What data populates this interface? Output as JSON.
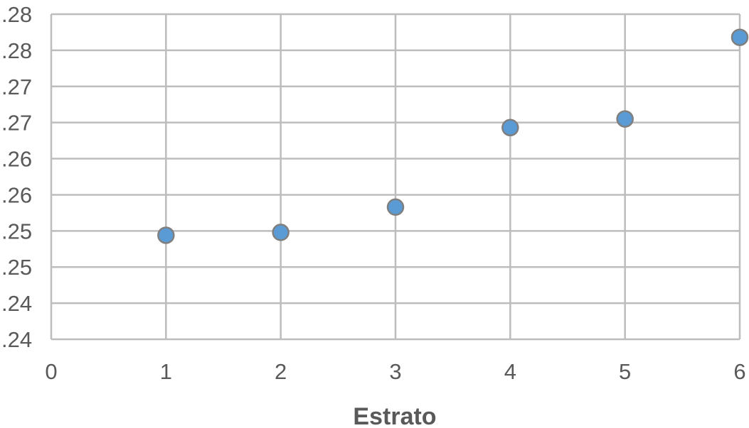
{
  "chart_data": {
    "type": "scatter",
    "title": "",
    "xlabel": "Estrato",
    "ylabel": "",
    "xlim": [
      0,
      6
    ],
    "ylim": [
      0.235,
      0.28
    ],
    "x_ticks": [
      0,
      1,
      2,
      3,
      4,
      5,
      6
    ],
    "x_tick_labels": [
      "0",
      "1",
      "2",
      "3",
      "4",
      "5",
      "6"
    ],
    "y_ticks": [
      0.235,
      0.24,
      0.245,
      0.25,
      0.255,
      0.26,
      0.265,
      0.27,
      0.275,
      0.28
    ],
    "y_tick_labels": [
      ".24",
      ".24",
      ".25",
      ".25",
      ".26",
      ".26",
      ".27",
      ".27",
      ".28",
      ".28"
    ],
    "grid": true,
    "legend": "none",
    "series": [
      {
        "x": [
          1,
          2,
          3,
          4,
          5,
          6
        ],
        "y": [
          0.2494,
          0.2498,
          0.2533,
          0.2643,
          0.2655,
          0.2768
        ],
        "color": "#5b9bd5",
        "edge_color": "#7f7f7f"
      }
    ]
  }
}
